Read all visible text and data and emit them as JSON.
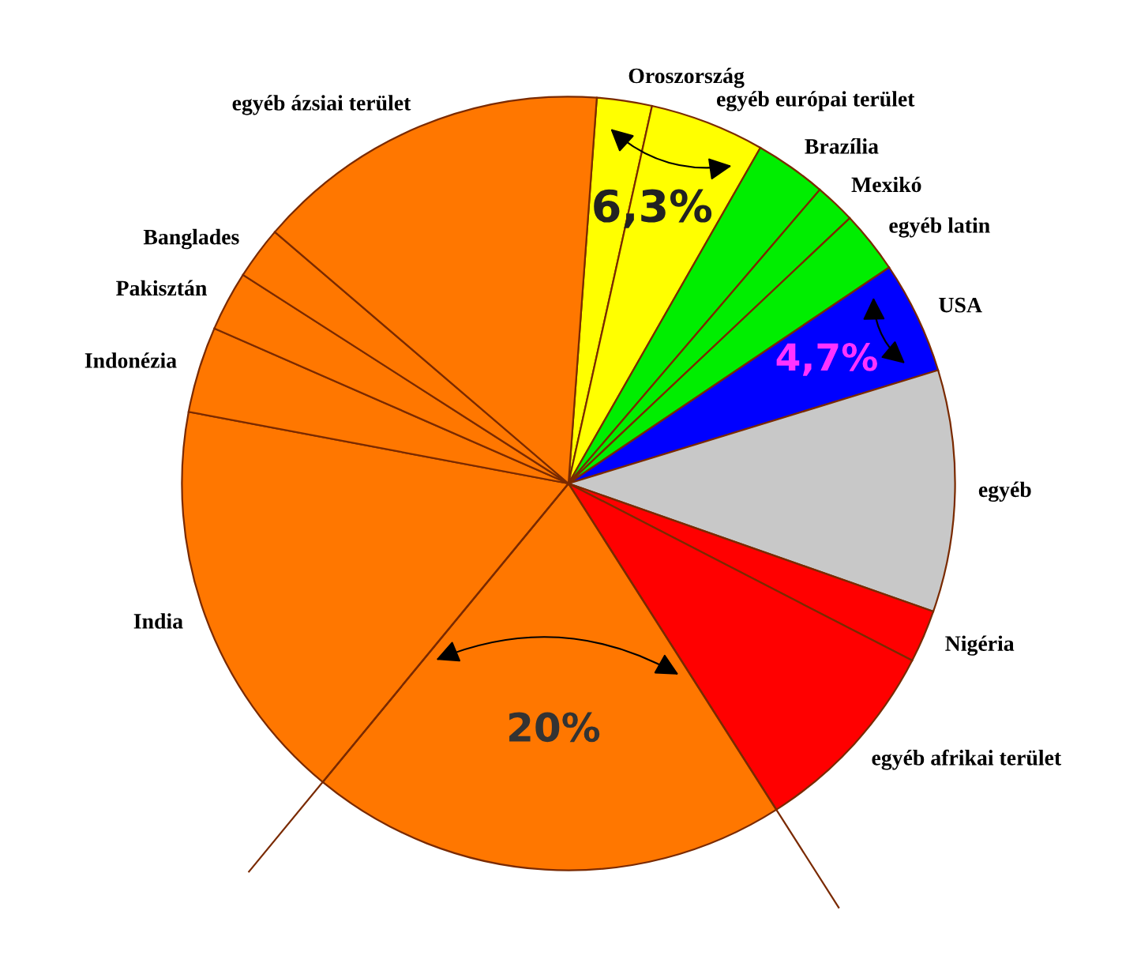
{
  "chart_data": {
    "type": "pie",
    "categories": [
      "Oroszország",
      "egyéb európai terület",
      "Brazília",
      "Mexikó",
      "egyéb latin",
      "USA",
      "egyéb",
      "Nigéria",
      "egyéb afrikai terület",
      null,
      "India",
      "Indonézia",
      "Pakisztán",
      "Banglades",
      "egyéb ázsiai terület"
    ],
    "values": [
      2.3,
      4.8,
      3.0,
      1.7,
      2.6,
      4.7,
      10.1,
      2.2,
      8.4,
      20,
      17.0,
      3.6,
      2.5,
      2.2,
      14.9
    ],
    "colors": [
      "#ffff00",
      "#ffff00",
      "#00ee00",
      "#00ee00",
      "#00ee00",
      "#0000ff",
      "#c8c8c8",
      "#ff0000",
      "#ff0000",
      "#ff7700",
      "#ff7700",
      "#ff7700",
      "#ff7700",
      "#ff7700",
      "#ff7700"
    ],
    "annotations": [
      "6,3%",
      "4,7%",
      "20%"
    ],
    "legend": false
  }
}
